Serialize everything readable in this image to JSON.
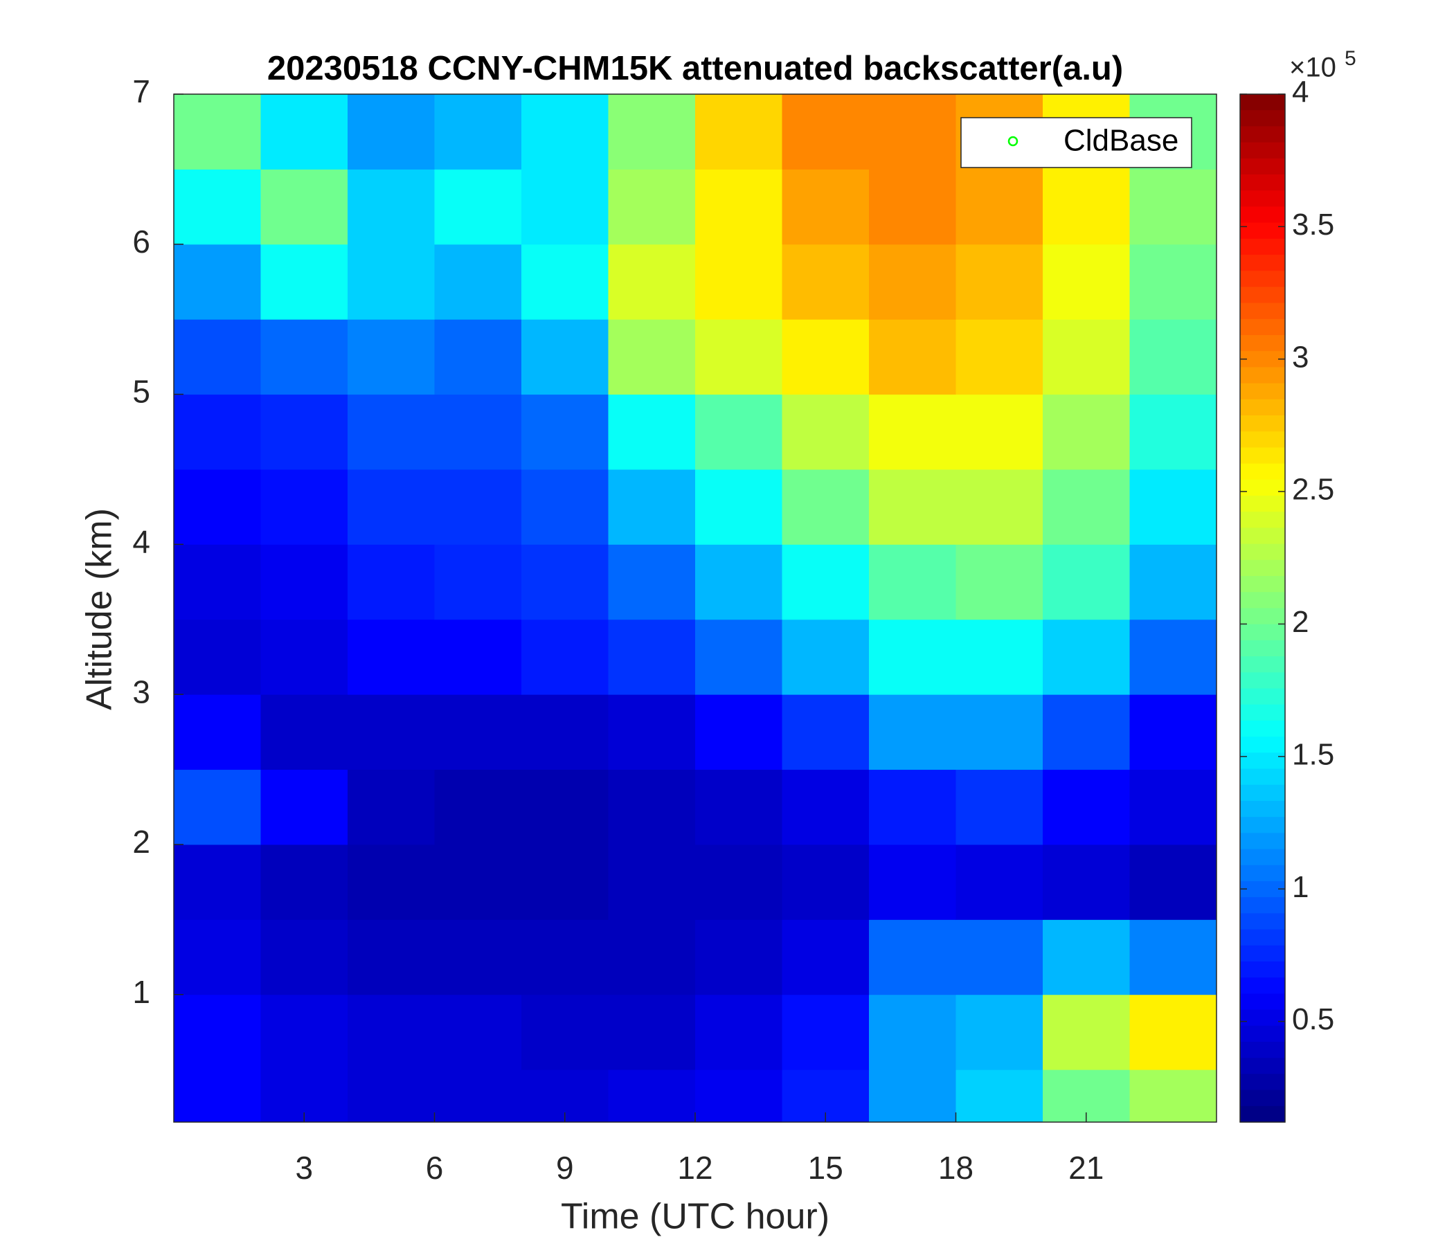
{
  "chart_data": {
    "type": "heatmap",
    "title": "20230518 CCNY-CHM15K attenuated backscatter(a.u)",
    "xlabel": "Time (UTC hour)",
    "ylabel": "Altitude (km)",
    "xlim": [
      0,
      24
    ],
    "ylim": [
      0.15,
      7
    ],
    "xticks": [
      3,
      6,
      9,
      12,
      15,
      18,
      21
    ],
    "yticks": [
      1,
      2,
      3,
      4,
      5,
      6,
      7
    ],
    "xbins": [
      0,
      2,
      4,
      6,
      8,
      10,
      12,
      14,
      16,
      18,
      20,
      22,
      24
    ],
    "ybins": [
      0.15,
      0.5,
      1,
      1.5,
      2,
      2.5,
      3,
      3.5,
      4,
      4.5,
      5,
      5.5,
      6,
      6.5,
      7
    ],
    "z": [
      [
        0.6,
        0.5,
        0.45,
        0.45,
        0.45,
        0.5,
        0.55,
        0.7,
        1.2,
        1.4,
        2.0,
        2.2
      ],
      [
        0.6,
        0.5,
        0.45,
        0.45,
        0.4,
        0.4,
        0.5,
        0.65,
        1.2,
        1.3,
        2.3,
        2.6
      ],
      [
        0.5,
        0.4,
        0.35,
        0.35,
        0.35,
        0.35,
        0.4,
        0.5,
        1.0,
        1.0,
        1.3,
        1.1
      ],
      [
        0.45,
        0.35,
        0.3,
        0.3,
        0.3,
        0.35,
        0.35,
        0.4,
        0.55,
        0.5,
        0.45,
        0.35
      ],
      [
        0.9,
        0.6,
        0.35,
        0.3,
        0.3,
        0.35,
        0.4,
        0.5,
        0.7,
        0.8,
        0.6,
        0.5
      ],
      [
        0.6,
        0.4,
        0.4,
        0.4,
        0.4,
        0.45,
        0.6,
        0.8,
        1.2,
        1.2,
        0.9,
        0.6
      ],
      [
        0.45,
        0.5,
        0.6,
        0.6,
        0.7,
        0.8,
        1.0,
        1.3,
        1.6,
        1.6,
        1.4,
        1.0
      ],
      [
        0.5,
        0.55,
        0.7,
        0.75,
        0.8,
        1.0,
        1.3,
        1.6,
        1.9,
        2.0,
        1.8,
        1.3
      ],
      [
        0.6,
        0.65,
        0.8,
        0.8,
        0.9,
        1.3,
        1.6,
        2.0,
        2.3,
        2.3,
        2.0,
        1.5
      ],
      [
        0.7,
        0.75,
        0.9,
        0.9,
        1.0,
        1.6,
        1.9,
        2.3,
        2.5,
        2.5,
        2.2,
        1.7
      ],
      [
        0.9,
        1.0,
        1.1,
        1.0,
        1.3,
        2.2,
        2.4,
        2.6,
        2.8,
        2.7,
        2.4,
        1.9
      ],
      [
        1.2,
        1.6,
        1.4,
        1.3,
        1.6,
        2.4,
        2.6,
        2.8,
        2.9,
        2.8,
        2.5,
        2.0
      ],
      [
        1.6,
        2.0,
        1.4,
        1.6,
        1.5,
        2.2,
        2.6,
        2.9,
        3.0,
        2.9,
        2.6,
        2.1
      ],
      [
        2.0,
        1.5,
        1.2,
        1.3,
        1.5,
        2.1,
        2.7,
        3.0,
        3.0,
        2.9,
        2.6,
        2.0
      ]
    ],
    "colormap": "jet",
    "clim": [
      0.12,
      4
    ],
    "cticks": [
      0.5,
      1,
      1.5,
      2,
      2.5,
      3,
      3.5,
      4
    ],
    "colorbar_multiplier": "×10",
    "colorbar_exponent": "5",
    "legend": [
      {
        "name": "CldBase",
        "color": "#00ff00",
        "marker": "o"
      }
    ],
    "legend_position": "northeast"
  }
}
